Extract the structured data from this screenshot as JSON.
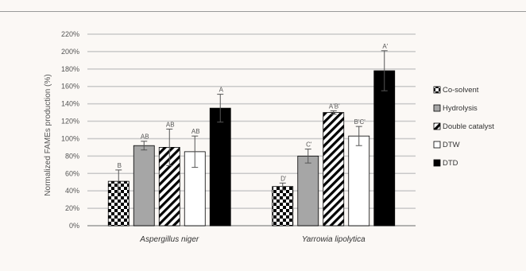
{
  "chart_data": {
    "type": "bar",
    "ylabel": "Normalized FAMEs production (%)",
    "xlabel": "",
    "ylim": [
      0,
      220
    ],
    "yticks": [
      0,
      20,
      40,
      60,
      80,
      100,
      120,
      140,
      160,
      180,
      200,
      220
    ],
    "ytick_labels": [
      "0%",
      "20%",
      "40%",
      "60%",
      "80%",
      "100%",
      "120%",
      "140%",
      "160%",
      "180%",
      "200%",
      "220%"
    ],
    "grid": true,
    "legend_position": "right",
    "categories": [
      "Aspergillus niger",
      "Yarrowia lipolytica"
    ],
    "series": [
      {
        "name": "Co-solvent",
        "pattern": "checker",
        "values": [
          51,
          45
        ],
        "errors": [
          13,
          4
        ],
        "labels": [
          "B",
          "D'"
        ]
      },
      {
        "name": "Hydrolysis",
        "pattern": "gray",
        "color": "#a6a6a6",
        "values": [
          92,
          80
        ],
        "errors": [
          5,
          8
        ],
        "labels": [
          "AB",
          "C'"
        ]
      },
      {
        "name": "Double catalyst",
        "pattern": "diagonal",
        "values": [
          90,
          130
        ],
        "errors": [
          21,
          2
        ],
        "labels": [
          "AB",
          "A'B'"
        ]
      },
      {
        "name": "DTW",
        "pattern": "white",
        "color": "#ffffff",
        "values": [
          85,
          103
        ],
        "errors": [
          18,
          11
        ],
        "labels": [
          "AB",
          "B'C'"
        ]
      },
      {
        "name": "DTD",
        "pattern": "black",
        "color": "#000000",
        "values": [
          135,
          178
        ],
        "errors": [
          16,
          23
        ],
        "labels": [
          "A",
          "A'"
        ]
      }
    ]
  }
}
